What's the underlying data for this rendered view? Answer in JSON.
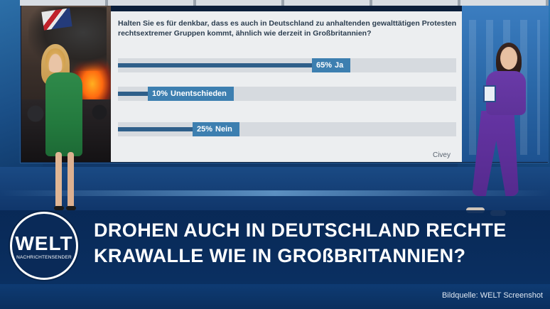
{
  "poll": {
    "question": "Halten Sie es für denkbar, dass es auch in Deutschland zu anhaltenden gewalttätigen Protesten rechtsextremer Gruppen kommt, ähnlich wie derzeit in Großbritannien?",
    "options": [
      {
        "percent_label": "65%",
        "label": "Ja",
        "value": 65
      },
      {
        "percent_label": "10%",
        "label": "Unentschieden",
        "value": 10
      },
      {
        "percent_label": "25%",
        "label": "Nein",
        "value": 25
      }
    ],
    "source": "Civey",
    "bar_color": "#2f5f8a",
    "tag_color": "#3d7fb0"
  },
  "headline": {
    "line1": "DROHEN AUCH IN DEUTSCHLAND RECHTE",
    "line2": "KRAWALLE WIE IN GROßBRITANNIEN?"
  },
  "logo": {
    "word": "WELT",
    "subtitle": "NACHRICHTENSENDER"
  },
  "credit": "Bildquelle: WELT Screenshot"
}
